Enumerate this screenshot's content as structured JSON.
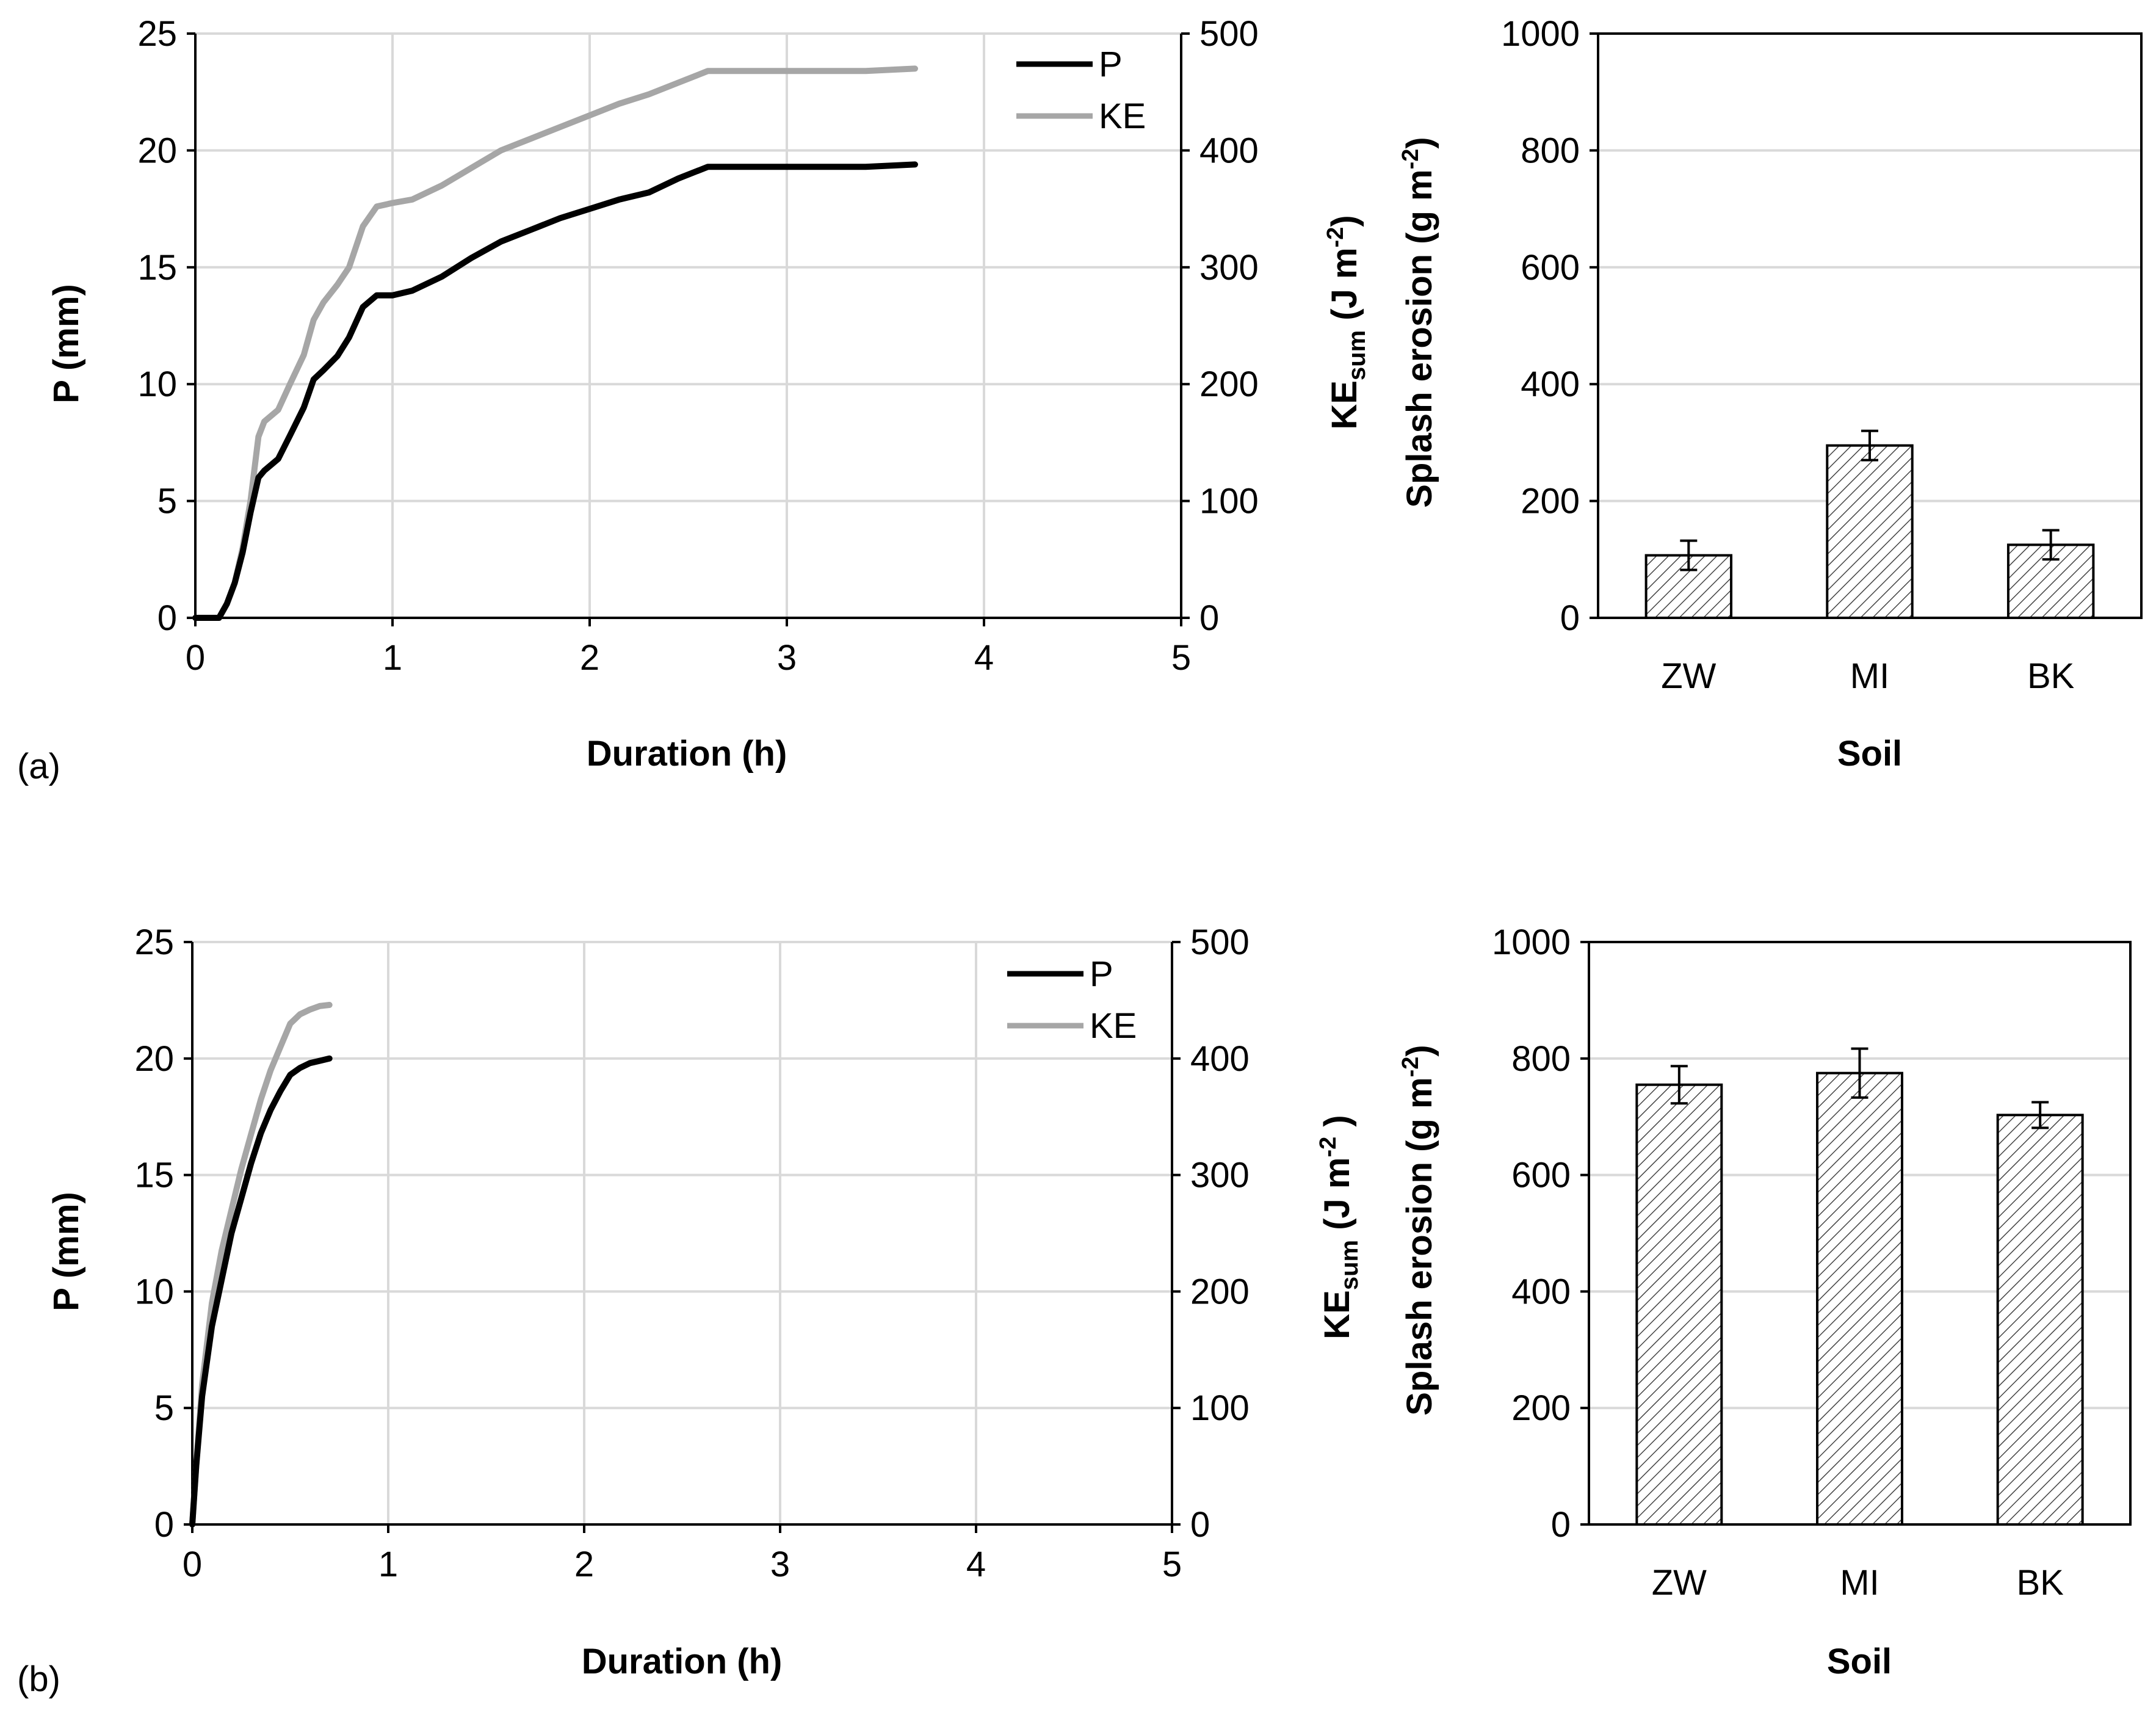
{
  "colors": {
    "P": "#000000",
    "KE": "#a6a6a6",
    "grid": "#d9d9d9",
    "bar_fill": "#ffffff",
    "hatch": "#444444"
  },
  "chart_data": [
    {
      "type": "line",
      "panel": "a",
      "panel_label": "(a)",
      "xlabel": "Duration (h)",
      "ylabel": "P (mm)",
      "y2label_main": "KE",
      "y2label_sub": "sum",
      "y2label_unit": " (J m",
      "y2label_exp": "-2",
      "y2label_close": ")",
      "xlim": [
        0,
        5
      ],
      "ylim": [
        0,
        25
      ],
      "y2lim": [
        0,
        500
      ],
      "xticks": [
        "0",
        "1",
        "2",
        "3",
        "4",
        "5"
      ],
      "yticks": [
        "0",
        "5",
        "10",
        "15",
        "20",
        "25"
      ],
      "y2ticks": [
        "0",
        "100",
        "200",
        "300",
        "400",
        "500"
      ],
      "legend": [
        "P",
        "KE"
      ],
      "series": [
        {
          "name": "P",
          "axis": "left",
          "x": [
            0,
            0.12,
            0.16,
            0.2,
            0.24,
            0.28,
            0.32,
            0.35,
            0.42,
            0.48,
            0.55,
            0.6,
            0.65,
            0.72,
            0.78,
            0.85,
            0.92,
            1.0,
            1.1,
            1.25,
            1.4,
            1.55,
            1.7,
            1.85,
            2.0,
            2.15,
            2.3,
            2.45,
            2.6,
            3.0,
            3.4,
            3.65
          ],
          "values": [
            0,
            0,
            0.6,
            1.5,
            2.8,
            4.5,
            6.0,
            6.3,
            6.8,
            7.8,
            9.0,
            10.2,
            10.6,
            11.2,
            12.0,
            13.3,
            13.8,
            13.8,
            14.0,
            14.6,
            15.4,
            16.1,
            16.6,
            17.1,
            17.5,
            17.9,
            18.2,
            18.8,
            19.3,
            19.3,
            19.3,
            19.4
          ]
        },
        {
          "name": "KE",
          "axis": "right",
          "x": [
            0,
            0.12,
            0.16,
            0.2,
            0.24,
            0.28,
            0.32,
            0.35,
            0.42,
            0.48,
            0.55,
            0.6,
            0.65,
            0.72,
            0.78,
            0.85,
            0.92,
            1.0,
            1.1,
            1.25,
            1.4,
            1.55,
            1.7,
            1.85,
            2.0,
            2.15,
            2.3,
            2.45,
            2.6,
            3.0,
            3.4,
            3.65
          ],
          "values": [
            0,
            0,
            12,
            30,
            60,
            100,
            155,
            168,
            178,
            200,
            225,
            255,
            270,
            285,
            300,
            335,
            352,
            355,
            358,
            370,
            385,
            400,
            410,
            420,
            430,
            440,
            448,
            458,
            468,
            468,
            468,
            470
          ]
        }
      ]
    },
    {
      "type": "bar",
      "panel": "a",
      "title": "",
      "xlabel": "Soil",
      "ylabel_main": "Splash erosion (g m",
      "ylabel_exp": "-2",
      "ylabel_close": ")",
      "categories": [
        "ZW",
        "MI",
        "BK"
      ],
      "values": [
        107,
        295,
        125
      ],
      "errors": [
        25,
        25,
        25
      ],
      "ylim": [
        0,
        1000
      ],
      "yticks": [
        "0",
        "200",
        "400",
        "600",
        "800",
        "1000"
      ]
    },
    {
      "type": "line",
      "panel": "b",
      "panel_label": "(b)",
      "xlabel": "Duration (h)",
      "ylabel": "P (mm)",
      "y2label_main": "KE",
      "y2label_sub": "sum",
      "y2label_unit": " (J m",
      "y2label_exp": "-2",
      "y2label_close": " )",
      "xlim": [
        0,
        5
      ],
      "ylim": [
        0,
        25
      ],
      "y2lim": [
        0,
        500
      ],
      "xticks": [
        "0",
        "1",
        "2",
        "3",
        "4",
        "5"
      ],
      "yticks": [
        "0",
        "5",
        "10",
        "15",
        "20",
        "25"
      ],
      "y2ticks": [
        "0",
        "100",
        "200",
        "300",
        "400",
        "500"
      ],
      "legend": [
        "P",
        "KE"
      ],
      "series": [
        {
          "name": "P",
          "axis": "left",
          "x": [
            0,
            0.02,
            0.05,
            0.1,
            0.15,
            0.2,
            0.25,
            0.3,
            0.35,
            0.4,
            0.45,
            0.5,
            0.55,
            0.6,
            0.65,
            0.7
          ],
          "values": [
            0,
            2.5,
            5.5,
            8.5,
            10.5,
            12.5,
            14.0,
            15.5,
            16.8,
            17.8,
            18.6,
            19.3,
            19.6,
            19.8,
            19.9,
            20.0
          ]
        },
        {
          "name": "KE",
          "axis": "right",
          "x": [
            0,
            0.02,
            0.05,
            0.1,
            0.15,
            0.2,
            0.25,
            0.3,
            0.35,
            0.4,
            0.45,
            0.5,
            0.55,
            0.6,
            0.65,
            0.7
          ],
          "values": [
            0,
            50,
            120,
            190,
            235,
            270,
            305,
            335,
            365,
            390,
            410,
            430,
            438,
            442,
            445,
            446
          ]
        }
      ]
    },
    {
      "type": "bar",
      "panel": "b",
      "title": "",
      "xlabel": "Soil",
      "ylabel_main": "Splash erosion (g m",
      "ylabel_exp": "-2",
      "ylabel_close": ")",
      "categories": [
        "ZW",
        "MI",
        "BK"
      ],
      "values": [
        755,
        775,
        703
      ],
      "errors": [
        32,
        42,
        22
      ],
      "ylim": [
        0,
        1000
      ],
      "yticks": [
        "0",
        "200",
        "400",
        "600",
        "800",
        "1000"
      ]
    }
  ]
}
